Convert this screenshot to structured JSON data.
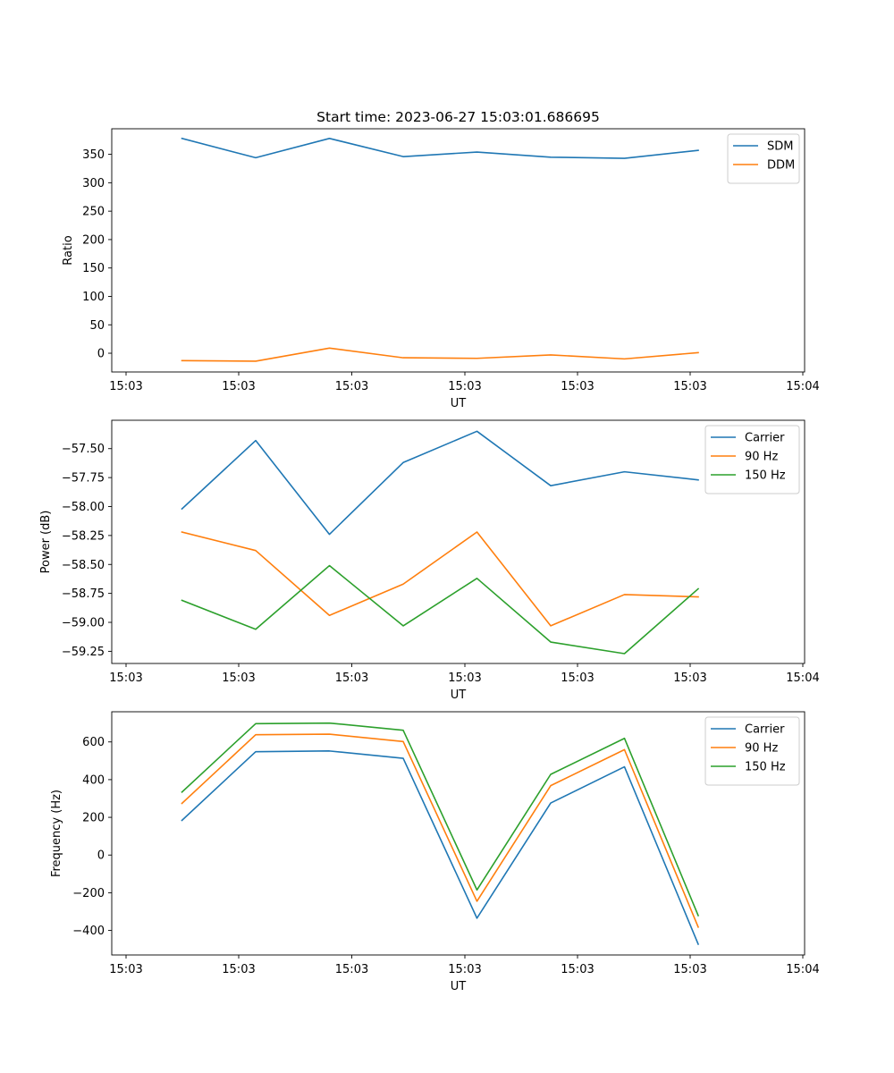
{
  "figure_title": "Start time: 2023-06-27 15:03:01.686695",
  "chart_data": [
    {
      "type": "line",
      "title": "Start time: 2023-06-27 15:03:01.686695",
      "xlabel": "UT",
      "ylabel": "Ratio",
      "x_tick_labels": [
        "15:03",
        "15:03",
        "15:03",
        "15:03",
        "15:03",
        "15:03",
        "15:04"
      ],
      "y_ticks": [
        0,
        50,
        100,
        150,
        200,
        250,
        300,
        350
      ],
      "ylim": [
        -33,
        395
      ],
      "grid": false,
      "legend_position": "top-right",
      "series": [
        {
          "name": "SDM",
          "color": "#1f77b4",
          "values": [
            378,
            344,
            378,
            346,
            354,
            345,
            343,
            357
          ]
        },
        {
          "name": "DDM",
          "color": "#ff7f0e",
          "values": [
            -13,
            -14,
            9,
            -8,
            -9,
            -3,
            -10,
            1
          ]
        }
      ]
    },
    {
      "type": "line",
      "xlabel": "UT",
      "ylabel": "Power (dB)",
      "x_tick_labels": [
        "15:03",
        "15:03",
        "15:03",
        "15:03",
        "15:03",
        "15:03",
        "15:04"
      ],
      "y_ticks": [
        -59.25,
        -59.0,
        -58.75,
        -58.5,
        -58.25,
        -58.0,
        -57.75,
        -57.5
      ],
      "y_tick_labels": [
        "−59.25",
        "−59.00",
        "−58.75",
        "−58.50",
        "−58.25",
        "−58.00",
        "−57.75",
        "−57.50"
      ],
      "ylim": [
        -59.355,
        -57.255
      ],
      "grid": false,
      "legend_position": "top-right",
      "series": [
        {
          "name": "Carrier",
          "color": "#1f77b4",
          "values": [
            -58.02,
            -57.43,
            -58.24,
            -57.62,
            -57.35,
            -57.82,
            -57.7,
            -57.77
          ]
        },
        {
          "name": "90 Hz",
          "color": "#ff7f0e",
          "values": [
            -58.22,
            -58.38,
            -58.94,
            -58.67,
            -58.22,
            -59.03,
            -58.76,
            -58.78
          ]
        },
        {
          "name": "150 Hz",
          "color": "#2ca02c",
          "values": [
            -58.81,
            -59.06,
            -58.51,
            -59.03,
            -58.62,
            -59.17,
            -59.27,
            -58.71
          ]
        }
      ]
    },
    {
      "type": "line",
      "xlabel": "UT",
      "ylabel": "Frequency (Hz)",
      "x_tick_labels": [
        "15:03",
        "15:03",
        "15:03",
        "15:03",
        "15:03",
        "15:03",
        "15:04"
      ],
      "y_ticks": [
        -400,
        -200,
        0,
        200,
        400,
        600
      ],
      "y_tick_labels": [
        "−400",
        "−200",
        "0",
        "200",
        "400",
        "600"
      ],
      "ylim": [
        -530,
        760
      ],
      "grid": false,
      "legend_position": "top-right",
      "series": [
        {
          "name": "Carrier",
          "color": "#1f77b4",
          "values": [
            184,
            548,
            552,
            513,
            -335,
            276,
            468,
            -473
          ]
        },
        {
          "name": "90 Hz",
          "color": "#ff7f0e",
          "values": [
            274,
            638,
            641,
            602,
            -245,
            368,
            559,
            -382
          ]
        },
        {
          "name": "150 Hz",
          "color": "#2ca02c",
          "values": [
            334,
            697,
            700,
            662,
            -185,
            428,
            619,
            -321
          ]
        }
      ]
    }
  ]
}
